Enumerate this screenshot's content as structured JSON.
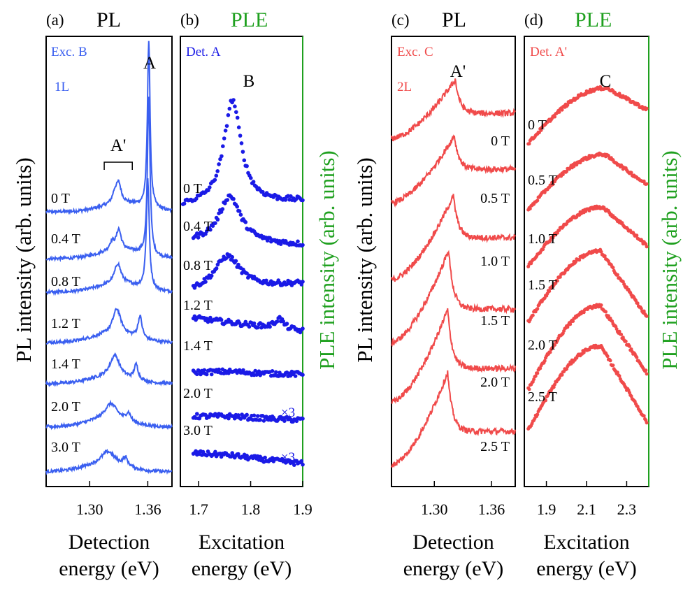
{
  "colors": {
    "axis": "#000000",
    "pl_blue": "#3a5ff0",
    "ple_blue": "#1a1ae6",
    "pl_red": "#f04a4a",
    "ple_red": "#f04a4a",
    "ple_green": "#1fa01f"
  },
  "y_labels": {
    "pl_left": "PL intensity (arb. units)",
    "ple_left": "PLE intensity (arb. units)",
    "pl_right": "PL intensity (arb. units)",
    "ple_right": "PLE intensity (arb. units)"
  },
  "chart_data": [
    {
      "id": "a",
      "type": "line",
      "panel_label": "(a)",
      "title": "PL",
      "title_color": "black",
      "xlabel": [
        "Detection",
        "energy (eV)"
      ],
      "xlim": [
        1.255,
        1.385
      ],
      "xticks": [
        1.3,
        1.36
      ],
      "xtick_labels": [
        "1.30",
        "1.36"
      ],
      "annotations": [
        {
          "text": "Exc. B",
          "color": "pl_blue"
        },
        {
          "text": "1L",
          "color": "pl_blue"
        },
        {
          "text": "A",
          "color": "black"
        },
        {
          "text": "A'",
          "color": "black",
          "bracket": [
            1.315,
            1.344
          ]
        }
      ],
      "series": [
        {
          "name": "0 T",
          "baseline": 0.0,
          "peaks": [
            {
              "x": 1.361,
              "h": 1.0,
              "w": 0.0016
            },
            {
              "x": 1.33,
              "h": 0.11,
              "w": 0.003
            },
            {
              "x": 1.326,
              "h": 0.06,
              "w": 0.003
            }
          ],
          "bg": {
            "x": 1.335,
            "h": 0.05,
            "w": 0.022
          }
        },
        {
          "name": "0.4 T",
          "baseline": 0.0,
          "peaks": [
            {
              "x": 1.361,
              "h": 0.95,
              "w": 0.0016
            },
            {
              "x": 1.33,
              "h": 0.12,
              "w": 0.003
            },
            {
              "x": 1.323,
              "h": 0.05,
              "w": 0.003
            }
          ],
          "bg": {
            "x": 1.332,
            "h": 0.05,
            "w": 0.022
          }
        },
        {
          "name": "0.8 T",
          "baseline": 0.0,
          "peaks": [
            {
              "x": 1.36,
              "h": 0.65,
              "w": 0.0018
            },
            {
              "x": 1.329,
              "h": 0.12,
              "w": 0.004
            }
          ],
          "bg": {
            "x": 1.33,
            "h": 0.05,
            "w": 0.022
          }
        },
        {
          "name": "1.2 T",
          "baseline": 0.0,
          "peaks": [
            {
              "x": 1.352,
              "h": 0.13,
              "w": 0.0025
            },
            {
              "x": 1.328,
              "h": 0.15,
              "w": 0.005
            }
          ],
          "bg": {
            "x": 1.325,
            "h": 0.05,
            "w": 0.022
          }
        },
        {
          "name": "1.4 T",
          "baseline": 0.0,
          "peaks": [
            {
              "x": 1.348,
              "h": 0.09,
              "w": 0.0025
            },
            {
              "x": 1.326,
              "h": 0.13,
              "w": 0.006
            }
          ],
          "bg": {
            "x": 1.322,
            "h": 0.04,
            "w": 0.022
          }
        },
        {
          "name": "2.0 T",
          "baseline": 0.0,
          "peaks": [
            {
              "x": 1.34,
              "h": 0.05,
              "w": 0.003
            },
            {
              "x": 1.322,
              "h": 0.1,
              "w": 0.008
            }
          ],
          "bg": {
            "x": 1.318,
            "h": 0.04,
            "w": 0.022
          }
        },
        {
          "name": "3.0 T",
          "baseline": 0.0,
          "peaks": [
            {
              "x": 1.337,
              "h": 0.05,
              "w": 0.003
            },
            {
              "x": 1.319,
              "h": 0.08,
              "w": 0.009
            }
          ],
          "bg": {
            "x": 1.315,
            "h": 0.04,
            "w": 0.022
          }
        }
      ]
    },
    {
      "id": "b",
      "type": "scatter",
      "panel_label": "(b)",
      "title": "PLE",
      "title_color": "green",
      "xlabel": [
        "Excitation",
        "energy (eV)"
      ],
      "xlim": [
        1.665,
        1.9
      ],
      "xticks": [
        1.7,
        1.8,
        1.9
      ],
      "xtick_labels": [
        "1.7",
        "1.8",
        "1.9"
      ],
      "annotations": [
        {
          "text": "Det. A",
          "color": "ple_blue"
        },
        {
          "text": "B",
          "color": "black"
        },
        {
          "text": "×3",
          "color": "ple_blue"
        },
        {
          "text": "×3",
          "color": "ple_blue"
        }
      ],
      "series": [
        {
          "name": "0 T",
          "x_start": 1.67,
          "start": 0.02,
          "end": 0.05,
          "peak_x": 1.765,
          "peak_h": 0.62,
          "peak_w": 0.02
        },
        {
          "name": "0.4 T",
          "x_start": 1.69,
          "start": 0.05,
          "end": 0.03,
          "peak_x": 1.76,
          "peak_h": 0.28,
          "peak_w": 0.025
        },
        {
          "name": "0.8 T",
          "x_start": 1.69,
          "start": 0.0,
          "end": 0.05,
          "peak_x": 1.755,
          "peak_h": 0.2,
          "peak_w": 0.03
        },
        {
          "name": "1.2 T",
          "x_start": 1.69,
          "start": 0.08,
          "end": 0.0,
          "peak_x": 1.855,
          "peak_h": 0.06,
          "peak_w": 0.01
        },
        {
          "name": "1.4 T",
          "x_start": 1.69,
          "start": 0.02,
          "end": 0.01,
          "peak_x": 1.76,
          "peak_h": 0.01,
          "peak_w": 0.05
        },
        {
          "name": "2.0 T",
          "x_start": 1.69,
          "start": 0.02,
          "end": 0.0,
          "peak_x": 1.76,
          "peak_h": 0.01,
          "peak_w": 0.05
        },
        {
          "name": "3.0 T",
          "x_start": 1.69,
          "start": 0.03,
          "end": -0.03,
          "peak_x": 1.76,
          "peak_h": 0.01,
          "peak_w": 0.05
        }
      ]
    },
    {
      "id": "c",
      "type": "line",
      "panel_label": "(c)",
      "title": "PL",
      "title_color": "black",
      "xlabel": [
        "Detection",
        "energy (eV)"
      ],
      "xlim": [
        1.255,
        1.385
      ],
      "xticks": [
        1.3,
        1.36
      ],
      "xtick_labels": [
        "1.30",
        "1.36"
      ],
      "annotations": [
        {
          "text": "Exc. C",
          "color": "pl_red"
        },
        {
          "text": "2L",
          "color": "pl_red"
        },
        {
          "text": "A'",
          "color": "black"
        }
      ],
      "series": [
        {
          "name": "0 T",
          "x_peak": 1.322,
          "peak_h": 0.4,
          "tail_start": 0.05,
          "tail_end": 0.2,
          "drop_w": 0.005
        },
        {
          "name": "0.5 T",
          "x_peak": 1.321,
          "peak_h": 0.4,
          "tail_start": 0.0,
          "tail_end": 0.2,
          "drop_w": 0.005
        },
        {
          "name": "1.0 T",
          "x_peak": 1.32,
          "peak_h": 0.5,
          "tail_start": 0.0,
          "tail_end": 0.25,
          "drop_w": 0.005
        },
        {
          "name": "1.5 T",
          "x_peak": 1.315,
          "peak_h": 0.55,
          "tail_start": 0.0,
          "tail_end": 0.2,
          "drop_w": 0.005
        },
        {
          "name": "2.0 T",
          "x_peak": 1.314,
          "peak_h": 0.55,
          "tail_start": 0.0,
          "tail_end": 0.2,
          "drop_w": 0.005
        },
        {
          "name": "2.5 T",
          "x_peak": 1.314,
          "peak_h": 0.55,
          "tail_start": 0.0,
          "tail_end": 0.2,
          "drop_w": 0.005
        }
      ]
    },
    {
      "id": "d",
      "type": "scatter",
      "panel_label": "(d)",
      "title": "PLE",
      "title_color": "green",
      "xlabel": [
        "Excitation",
        "energy (eV)"
      ],
      "xlim": [
        1.79,
        2.41
      ],
      "xticks": [
        1.9,
        2.1,
        2.3
      ],
      "xtick_labels": [
        "1.9",
        "2.1",
        "2.3"
      ],
      "annotations": [
        {
          "text": "Det. A'",
          "color": "ple_red"
        },
        {
          "text": "C",
          "color": "black"
        }
      ],
      "series": [
        {
          "name": "0 T",
          "x_start": 1.81,
          "start": 0.0,
          "peak_x": 2.2,
          "peak_h": 0.33,
          "end": 0.2
        },
        {
          "name": "0.5 T",
          "x_start": 1.81,
          "start": 0.0,
          "peak_x": 2.19,
          "peak_h": 0.33,
          "end": 0.15
        },
        {
          "name": "1.0 T",
          "x_start": 1.81,
          "start": 0.0,
          "peak_x": 2.18,
          "peak_h": 0.35,
          "end": 0.12
        },
        {
          "name": "1.5 T",
          "x_start": 1.81,
          "start": 0.0,
          "peak_x": 2.17,
          "peak_h": 0.42,
          "end": 0.03
        },
        {
          "name": "2.0 T",
          "x_start": 1.81,
          "start": -0.05,
          "peak_x": 2.17,
          "peak_h": 0.45,
          "end": 0.05
        },
        {
          "name": "2.5 T",
          "x_start": 1.81,
          "start": 0.0,
          "peak_x": 2.17,
          "peak_h": 0.5,
          "end": 0.05
        }
      ]
    }
  ]
}
